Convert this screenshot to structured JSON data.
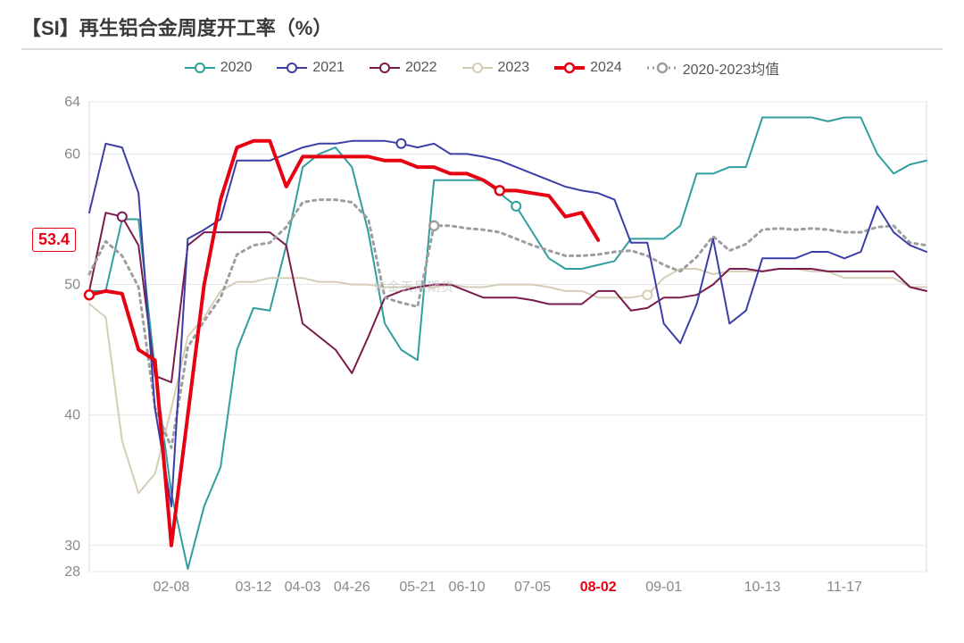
{
  "title": "【SI】再生铝合金周度开工率（%）",
  "title_color": "#3a3a3a",
  "title_fontsize": 22,
  "watermark": "紫金天风期货",
  "background_color": "#ffffff",
  "plot_border_color": "#d9d9d9",
  "grid_color": "#e8e8e8",
  "axis_text_color": "#888888",
  "axis_fontsize": 16,
  "y": {
    "min": 28,
    "max": 64,
    "ticks": [
      28,
      30,
      40,
      50,
      60,
      64
    ]
  },
  "x": {
    "min": 0,
    "max": 51,
    "tick_positions": [
      5,
      10,
      13,
      16,
      20,
      23,
      27,
      31,
      35,
      41,
      46
    ],
    "tick_labels": [
      "02-08",
      "03-12",
      "04-03",
      "04-26",
      "05-21",
      "06-10",
      "07-05",
      "08-02",
      "09-01",
      "10-13",
      "11-17"
    ],
    "highlight_tick_index": 7,
    "highlight_tick_color": "#e60012"
  },
  "last_value_badge": {
    "text": "53.4",
    "value": 53.4,
    "color": "#e60012"
  },
  "legend": [
    {
      "key": "s2020",
      "label": "2020",
      "color": "#2f9e9e",
      "style": "solid",
      "width": 2,
      "marker": "hollow"
    },
    {
      "key": "s2021",
      "label": "2021",
      "color": "#3b3ea8",
      "style": "solid",
      "width": 2,
      "marker": "hollow"
    },
    {
      "key": "s2022",
      "label": "2022",
      "color": "#7a1b4d",
      "style": "solid",
      "width": 2,
      "marker": "hollow"
    },
    {
      "key": "s2023",
      "label": "2023",
      "color": "#d6cdb6",
      "style": "solid",
      "width": 2,
      "marker": "hollow"
    },
    {
      "key": "s2024",
      "label": "2024",
      "color": "#e60012",
      "style": "solid",
      "width": 4,
      "marker": "hollow"
    },
    {
      "key": "avg",
      "label": "2020-2023均值",
      "color": "#9e9e9e",
      "style": "dotted",
      "width": 3,
      "marker": "hollow"
    }
  ],
  "legend_marker_positions": {
    "s2020": [
      26
    ],
    "s2021": [
      19
    ],
    "s2022": [
      2
    ],
    "s2023": [
      34
    ],
    "s2024": [
      25
    ],
    "avg": [
      21
    ]
  },
  "series": {
    "s2020": [
      49.5,
      49.5,
      55,
      55,
      43.5,
      34,
      28.2,
      33,
      36,
      45,
      48.2,
      48,
      53,
      59,
      60,
      60.5,
      59,
      54,
      47,
      45,
      44.2,
      58,
      58,
      58,
      58,
      57,
      56,
      54,
      52,
      51.2,
      51.2,
      51.5,
      51.8,
      53.5,
      53.5,
      53.5,
      54.5,
      58.5,
      58.5,
      59,
      59,
      62.8,
      62.8,
      62.8,
      62.8,
      62.5,
      62.8,
      62.8,
      60,
      58.5,
      59.2,
      59.5
    ],
    "s2021": [
      55.5,
      60.8,
      60.5,
      57,
      40.5,
      33,
      53.5,
      54.2,
      55,
      59.5,
      59.5,
      59.5,
      60,
      60.5,
      60.8,
      60.8,
      61,
      61,
      61,
      60.8,
      60.5,
      60.8,
      60,
      60,
      59.8,
      59.5,
      59,
      58.5,
      58,
      57.5,
      57.2,
      57,
      56.5,
      53.2,
      53.2,
      47,
      45.5,
      48.5,
      53.5,
      47,
      48,
      52,
      52,
      52,
      52.5,
      52.5,
      52,
      52.5,
      56,
      54,
      53,
      52.5
    ],
    "s2022": [
      49.5,
      55.5,
      55.2,
      53,
      43,
      42.5,
      53,
      54,
      54,
      54,
      54,
      54,
      53,
      47,
      46,
      45,
      43.2,
      46,
      49,
      49.5,
      49.8,
      50,
      50,
      49.5,
      49,
      49,
      49,
      48.8,
      48.5,
      48.5,
      48.5,
      49.5,
      49.5,
      48,
      48.2,
      49,
      49,
      49.2,
      50,
      51.2,
      51.2,
      51,
      51.2,
      51.2,
      51.2,
      51,
      51,
      51,
      51,
      51,
      49.8,
      49.5
    ],
    "s2023": [
      48.5,
      47.5,
      38,
      34,
      35.5,
      40.5,
      46,
      47.5,
      49.5,
      50.2,
      50.2,
      50.5,
      50.5,
      50.5,
      50.2,
      50.2,
      50,
      50,
      49.8,
      49.8,
      49.8,
      49.8,
      50,
      49.8,
      49.8,
      50,
      50,
      50,
      49.8,
      49.5,
      49.5,
      49,
      49,
      49,
      49.2,
      50.5,
      51.2,
      51.2,
      50.8,
      51,
      51,
      51,
      51.2,
      51.2,
      51,
      51,
      50.5,
      50.5,
      50.5,
      50.5,
      49.8,
      49.8
    ],
    "s2024": [
      49.2,
      49.5,
      49.3,
      45,
      44.2,
      30,
      40,
      50,
      56.5,
      60.5,
      61,
      61,
      57.5,
      59.8,
      59.8,
      59.8,
      59.8,
      59.8,
      59.5,
      59.5,
      59,
      59,
      58.5,
      58.5,
      58,
      57.2,
      57.2,
      57,
      56.8,
      55.2,
      55.5,
      53.4
    ],
    "avg": [
      50.8,
      53.3,
      52.2,
      49.8,
      40.6,
      37.5,
      45.2,
      47.2,
      49,
      52.3,
      53,
      53.2,
      54.4,
      56.3,
      56.5,
      56.5,
      56.3,
      55,
      49,
      48.6,
      48.3,
      54.5,
      54.5,
      54.3,
      54.2,
      54,
      53.5,
      53,
      52.6,
      52.2,
      52.2,
      52.3,
      52.5,
      52.6,
      52.2,
      51.5,
      51,
      52.1,
      53.7,
      52.6,
      53.1,
      54.2,
      54.3,
      54.2,
      54.3,
      54.2,
      54,
      54,
      54.4,
      54.5,
      53.2,
      53
    ]
  }
}
